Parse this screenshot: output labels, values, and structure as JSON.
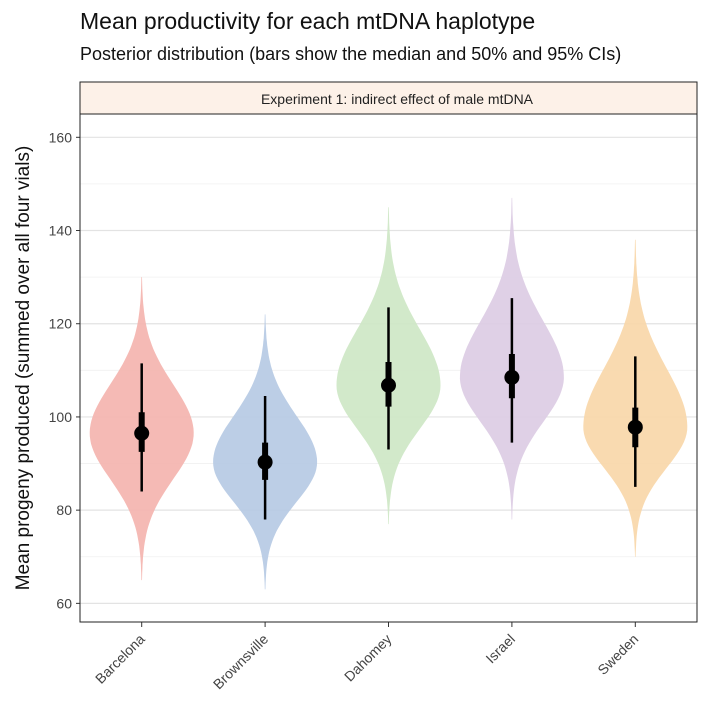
{
  "chart_data": {
    "type": "violin",
    "title": "Mean productivity for each mtDNA haplotype",
    "subtitle": "Posterior distribution (bars show the median and 50% and 95% CIs)",
    "facet_label": "Experiment 1: indirect effect of male mtDNA",
    "xlabel": "",
    "ylabel": "Mean progeny produced (summed over all four vials)",
    "ylim": [
      56,
      165
    ],
    "y_ticks": [
      60,
      80,
      100,
      120,
      140,
      160
    ],
    "categories": [
      "Barcelona",
      "Brownsville",
      "Dahomey",
      "Israel",
      "Sweden"
    ],
    "series": [
      {
        "category": "Barcelona",
        "color": "#f4b3ad",
        "median": 96.5,
        "ci50": [
          92.5,
          101
        ],
        "ci95": [
          84,
          111.5
        ],
        "range": [
          65,
          130
        ]
      },
      {
        "category": "Brownsville",
        "color": "#b5c9e3",
        "median": 90.3,
        "ci50": [
          86.5,
          94.5
        ],
        "ci95": [
          78,
          104.5
        ],
        "range": [
          63,
          122
        ]
      },
      {
        "category": "Dahomey",
        "color": "#cde7c4",
        "median": 106.8,
        "ci50": [
          102.2,
          111.8
        ],
        "ci95": [
          93,
          123.5
        ],
        "range": [
          77,
          145
        ]
      },
      {
        "category": "Israel",
        "color": "#dccbe3",
        "median": 108.5,
        "ci50": [
          104,
          113.5
        ],
        "ci95": [
          94.5,
          125.5
        ],
        "range": [
          78,
          147
        ]
      },
      {
        "category": "Sweden",
        "color": "#f8d6a7",
        "median": 97.8,
        "ci50": [
          93.5,
          102
        ],
        "ci95": [
          85,
          113
        ],
        "range": [
          70,
          138
        ]
      }
    ],
    "grid": true,
    "legend": "none"
  }
}
